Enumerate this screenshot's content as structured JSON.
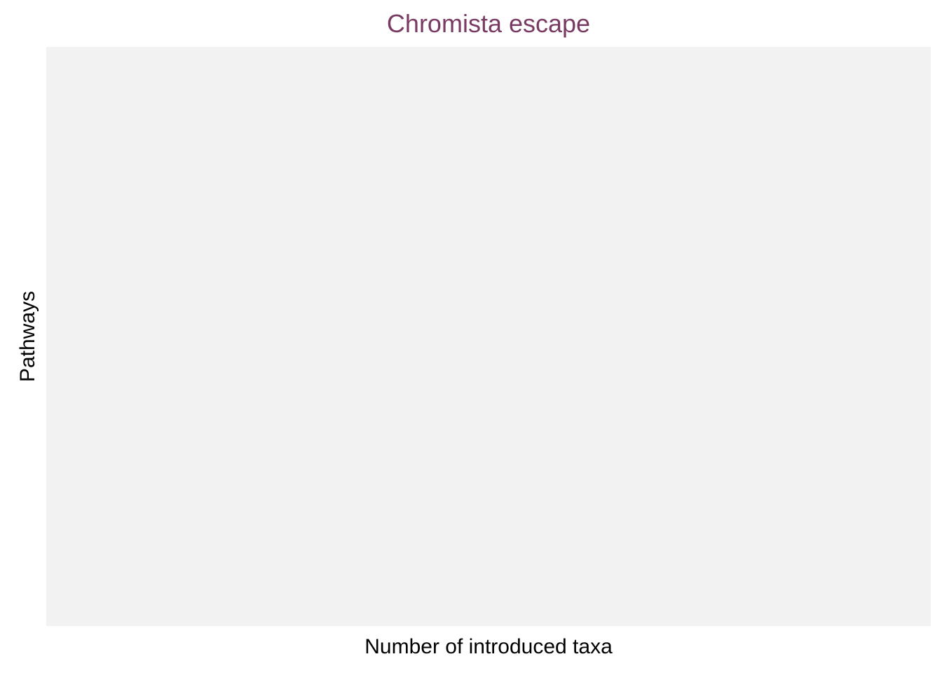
{
  "chart_data": {
    "type": "bar",
    "title": "Chromista escape",
    "xlabel": "Number of introduced taxa",
    "ylabel": "Pathways",
    "categories": [],
    "values": [],
    "grid": false,
    "colors": {
      "title": "#7a3b63",
      "panel_background": "#f2f2f2",
      "text": "#000000"
    }
  }
}
